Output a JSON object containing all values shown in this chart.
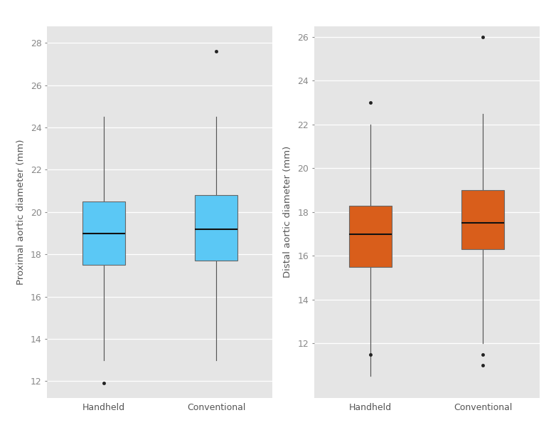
{
  "left_panel": {
    "ylabel": "Proximal aortic diameter (mm)",
    "ylim": [
      11.2,
      28.8
    ],
    "yticks": [
      12,
      14,
      16,
      18,
      20,
      22,
      24,
      26,
      28
    ],
    "categories": [
      "Handheld",
      "Conventional"
    ],
    "box_color": "#5BC8F5",
    "box_edge_color": "#666666",
    "median_color": "#111111",
    "whisker_color": "#555555",
    "flier_color": "#222222",
    "boxes": [
      {
        "label": "Handheld",
        "q1": 17.5,
        "median": 19.0,
        "q3": 20.5,
        "whisker_low": 13.0,
        "whisker_high": 24.5,
        "outliers": [
          11.9
        ]
      },
      {
        "label": "Conventional",
        "q1": 17.7,
        "median": 19.2,
        "q3": 20.8,
        "whisker_low": 13.0,
        "whisker_high": 24.5,
        "outliers": [
          27.6
        ]
      }
    ]
  },
  "right_panel": {
    "ylabel": "Distal aortic diameter (mm)",
    "ylim": [
      9.5,
      26.5
    ],
    "yticks": [
      12,
      14,
      16,
      18,
      20,
      22,
      24,
      26
    ],
    "categories": [
      "Handheld",
      "Conventional"
    ],
    "box_color": "#D95E1B",
    "box_edge_color": "#666666",
    "median_color": "#111111",
    "whisker_color": "#555555",
    "flier_color": "#222222",
    "boxes": [
      {
        "label": "Handheld",
        "q1": 15.5,
        "median": 17.0,
        "q3": 18.3,
        "whisker_low": 10.5,
        "whisker_high": 22.0,
        "outliers": [
          23.0,
          11.5
        ]
      },
      {
        "label": "Conventional",
        "q1": 16.3,
        "median": 17.5,
        "q3": 19.0,
        "whisker_low": 12.0,
        "whisker_high": 22.5,
        "outliers": [
          26.0,
          11.5,
          11.0
        ]
      }
    ]
  },
  "panel_bg_color": "#E5E5E5",
  "figure_bg_color": "#FFFFFF",
  "grid_color": "#FFFFFF",
  "box_width": 0.38,
  "x_positions": [
    1,
    2
  ],
  "xlim": [
    0.5,
    2.5
  ],
  "fontsize_label": 9.5,
  "fontsize_tick": 9,
  "tick_color": "#888888",
  "label_color": "#555555"
}
